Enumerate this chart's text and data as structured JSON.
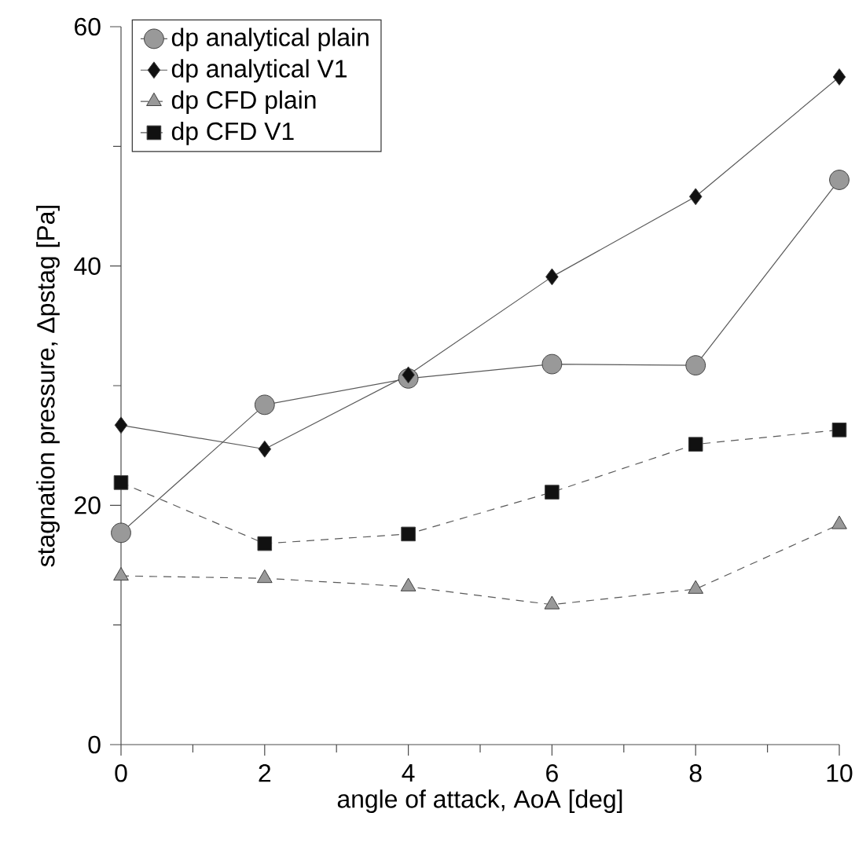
{
  "chart_data": {
    "type": "line",
    "xlabel": "angle of attack, AoA [deg]",
    "ylabel": "stagnation pressure, Δpstag [Pa]",
    "x": [
      0,
      2,
      4,
      6,
      8,
      10
    ],
    "series": [
      {
        "name": "dp analytical plain",
        "color": "#999999",
        "marker": "circle",
        "line_style": "solid",
        "values": [
          17.7,
          28.4,
          30.6,
          31.8,
          31.7,
          47.2
        ]
      },
      {
        "name": "dp analytical V1",
        "color": "#111111",
        "marker": "diamond",
        "line_style": "solid",
        "values": [
          26.7,
          24.7,
          30.9,
          39.1,
          45.8,
          55.8
        ]
      },
      {
        "name": "dp CFD plain",
        "color": "#999999",
        "marker": "triangle",
        "line_style": "dashed",
        "values": [
          14.1,
          13.9,
          13.2,
          11.7,
          13.0,
          18.4
        ]
      },
      {
        "name": "dp CFD V1",
        "color": "#111111",
        "marker": "square",
        "line_style": "dashed",
        "values": [
          21.9,
          16.8,
          17.6,
          21.1,
          25.1,
          26.3
        ]
      }
    ],
    "xlim": [
      0,
      10
    ],
    "ylim": [
      0,
      60
    ],
    "xticks": [
      0,
      2,
      4,
      6,
      8,
      10
    ],
    "yticks": [
      0,
      20,
      40,
      60
    ],
    "grid": false,
    "legend": "top left"
  }
}
